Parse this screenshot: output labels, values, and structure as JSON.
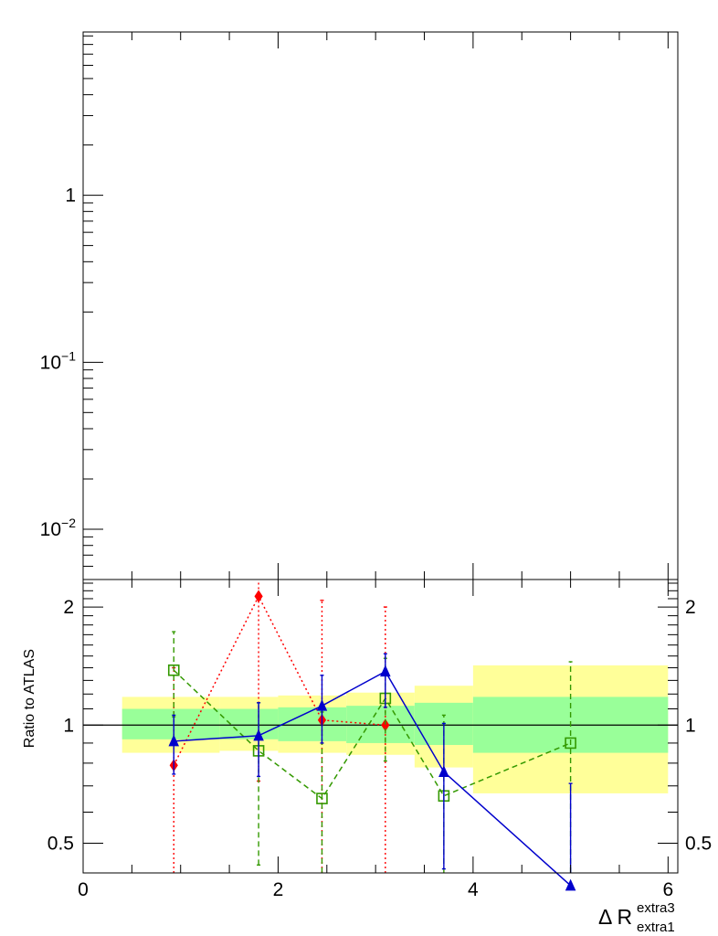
{
  "chart_data": [
    {
      "type": "scatter",
      "panel": "main",
      "yscale": "log",
      "ylim": [
        0.005,
        9.5
      ],
      "xlim": [
        0,
        6.1
      ],
      "yticks": [
        {
          "value": 0.01,
          "base": "10",
          "exp": "−2"
        },
        {
          "value": 0.1,
          "base": "10",
          "exp": "−1"
        },
        {
          "value": 1,
          "label": "1"
        }
      ],
      "series": []
    },
    {
      "type": "line",
      "panel": "ratio",
      "ylabel": "Ratio to ATLAS",
      "yscale": "log",
      "ylim": [
        0.42,
        2.35
      ],
      "xlim": [
        0,
        6.1
      ],
      "xticks": [
        0,
        2,
        4,
        6
      ],
      "yticks": [
        0.5,
        1,
        2
      ],
      "xlabel": {
        "main": "Δ R",
        "sup": "extra3",
        "sub": "extra1"
      },
      "reference_line": 1,
      "bands": {
        "edges": [
          0.4,
          1.4,
          2.0,
          2.7,
          3.4,
          4.0,
          6.0
        ],
        "inner": [
          [
            0.92,
            1.1
          ],
          [
            0.92,
            1.1
          ],
          [
            0.91,
            1.11
          ],
          [
            0.9,
            1.12
          ],
          [
            0.89,
            1.14
          ],
          [
            0.85,
            1.18
          ]
        ],
        "outer": [
          [
            0.85,
            1.18
          ],
          [
            0.86,
            1.18
          ],
          [
            0.85,
            1.19
          ],
          [
            0.84,
            1.21
          ],
          [
            0.78,
            1.26
          ],
          [
            0.67,
            1.42
          ]
        ],
        "inner_color": "#99ff99",
        "outer_color": "#ffff99"
      },
      "series": [
        {
          "color": "#ff0000",
          "marker": "diamond",
          "dash": "2,3",
          "connect": true,
          "points": [
            {
              "x": 0.93,
              "y": 0.79,
              "lo": 0.38,
              "hi": 1.4
            },
            {
              "x": 1.8,
              "y": 2.13,
              "lo": 0.72,
              "hi": 2.4
            },
            {
              "x": 2.45,
              "y": 1.03,
              "lo": 0.3,
              "hi": 2.08
            },
            {
              "x": 3.1,
              "y": 1.0,
              "lo": 0.3,
              "hi": 2.0
            }
          ]
        },
        {
          "color": "#339900",
          "marker": "open-square",
          "dash": "6,4",
          "connect": true,
          "points": [
            {
              "x": 0.93,
              "y": 1.38,
              "lo": 1.05,
              "hi": 1.73
            },
            {
              "x": 1.8,
              "y": 0.86,
              "lo": 0.44,
              "hi": 1.14
            },
            {
              "x": 2.45,
              "y": 0.65,
              "lo": 0.3,
              "hi": 1.08
            },
            {
              "x": 3.1,
              "y": 1.17,
              "lo": 0.81,
              "hi": 1.48
            },
            {
              "x": 3.7,
              "y": 0.66,
              "lo": 0.3,
              "hi": 1.06
            },
            {
              "x": 5.0,
              "y": 0.9,
              "lo": 0.3,
              "hi": 1.45
            }
          ]
        },
        {
          "color": "#0000cc",
          "marker": "triangle",
          "dash": "",
          "connect": true,
          "points": [
            {
              "x": 0.93,
              "y": 0.91,
              "lo": 0.75,
              "hi": 1.06
            },
            {
              "x": 1.8,
              "y": 0.94,
              "lo": 0.74,
              "hi": 1.14
            },
            {
              "x": 2.45,
              "y": 1.12,
              "lo": 0.9,
              "hi": 1.34
            },
            {
              "x": 3.1,
              "y": 1.37,
              "lo": 1.11,
              "hi": 1.52
            },
            {
              "x": 3.7,
              "y": 0.76,
              "lo": 0.43,
              "hi": 1.01
            },
            {
              "x": 5.0,
              "y": 0.39,
              "lo": 0.3,
              "hi": 0.71
            }
          ]
        }
      ]
    }
  ]
}
